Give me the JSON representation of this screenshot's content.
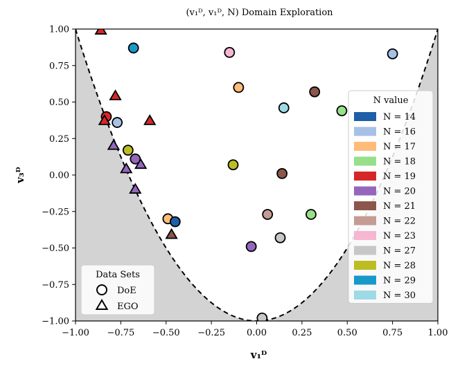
{
  "chart_data": {
    "type": "scatter",
    "title": "(v₁ᴰ, v₁ᴰ, N) Domain Exploration",
    "xlabel": "v₁ᴰ",
    "ylabel": "v₃ᴰ",
    "xlim": [
      -1.0,
      1.0
    ],
    "ylim": [
      -1.0,
      1.0
    ],
    "x_ticks": [
      "−1.00",
      "−0.75",
      "−0.50",
      "−0.25",
      "0.00",
      "0.25",
      "0.50",
      "0.75",
      "1.00"
    ],
    "y_ticks": [
      "−1.00",
      "−0.75",
      "−0.50",
      "−0.25",
      "0.00",
      "0.25",
      "0.50",
      "0.75",
      "1.00"
    ],
    "x_tick_values": [
      -1.0,
      -0.75,
      -0.5,
      -0.25,
      0.0,
      0.25,
      0.5,
      0.75,
      1.0
    ],
    "y_tick_values": [
      -1.0,
      -0.75,
      -0.5,
      -0.25,
      0.0,
      0.25,
      0.5,
      0.75,
      1.0
    ],
    "grid": false,
    "boundary": {
      "curve": "y = 2x^2 - 1",
      "style": "dashed",
      "shaded_region": "outside",
      "shade_color": "#d3d3d3"
    },
    "legend_n": {
      "title": "N value",
      "placement": "right",
      "entries": [
        {
          "label": "N = 14",
          "color": "#1f5fa8"
        },
        {
          "label": "N = 16",
          "color": "#a7c0e6"
        },
        {
          "label": "N = 17",
          "color": "#ffbb78"
        },
        {
          "label": "N = 18",
          "color": "#98df8a"
        },
        {
          "label": "N = 19",
          "color": "#d62728"
        },
        {
          "label": "N = 20",
          "color": "#9467bd"
        },
        {
          "label": "N = 21",
          "color": "#8c564b"
        },
        {
          "label": "N = 22",
          "color": "#c49c94"
        },
        {
          "label": "N = 23",
          "color": "#f7b6d2"
        },
        {
          "label": "N = 27",
          "color": "#c7c7c7"
        },
        {
          "label": "N = 28",
          "color": "#bcbd22"
        },
        {
          "label": "N = 29",
          "color": "#1799c9"
        },
        {
          "label": "N = 30",
          "color": "#9edae5"
        }
      ]
    },
    "legend_sets": {
      "title": "Data Sets",
      "placement": "bottom-left",
      "entries": [
        {
          "label": "DoE",
          "marker": "circle"
        },
        {
          "label": "EGO",
          "marker": "triangle"
        }
      ]
    },
    "points": [
      {
        "x": -0.68,
        "y": 0.87,
        "N": 29,
        "set": "DoE"
      },
      {
        "x": -0.15,
        "y": 0.84,
        "N": 23,
        "set": "DoE"
      },
      {
        "x": -0.1,
        "y": 0.6,
        "N": 17,
        "set": "DoE"
      },
      {
        "x": 0.32,
        "y": 0.57,
        "N": 21,
        "set": "DoE"
      },
      {
        "x": 0.47,
        "y": 0.44,
        "N": 18,
        "set": "DoE"
      },
      {
        "x": 0.75,
        "y": 0.83,
        "N": 16,
        "set": "DoE"
      },
      {
        "x": 0.15,
        "y": 0.46,
        "N": 30,
        "set": "DoE"
      },
      {
        "x": -0.83,
        "y": 0.4,
        "N": 19,
        "set": "DoE"
      },
      {
        "x": -0.77,
        "y": 0.36,
        "N": 16,
        "set": "DoE"
      },
      {
        "x": -0.71,
        "y": 0.17,
        "N": 28,
        "set": "DoE"
      },
      {
        "x": -0.67,
        "y": 0.11,
        "N": 20,
        "set": "DoE"
      },
      {
        "x": -0.13,
        "y": 0.07,
        "N": 28,
        "set": "DoE"
      },
      {
        "x": 0.14,
        "y": 0.01,
        "N": 21,
        "set": "DoE"
      },
      {
        "x": -0.49,
        "y": -0.3,
        "N": 17,
        "set": "DoE"
      },
      {
        "x": -0.45,
        "y": -0.32,
        "N": 14,
        "set": "DoE"
      },
      {
        "x": 0.06,
        "y": -0.27,
        "N": 22,
        "set": "DoE"
      },
      {
        "x": 0.3,
        "y": -0.27,
        "N": 18,
        "set": "DoE"
      },
      {
        "x": 0.13,
        "y": -0.43,
        "N": 27,
        "set": "DoE"
      },
      {
        "x": -0.03,
        "y": -0.49,
        "N": 20,
        "set": "DoE"
      },
      {
        "x": 0.03,
        "y": -0.98,
        "N": 27,
        "set": "DoE"
      },
      {
        "x": -0.86,
        "y": 0.99,
        "N": 19,
        "set": "EGO"
      },
      {
        "x": -0.78,
        "y": 0.54,
        "N": 19,
        "set": "EGO"
      },
      {
        "x": -0.84,
        "y": 0.37,
        "N": 19,
        "set": "EGO"
      },
      {
        "x": -0.59,
        "y": 0.37,
        "N": 19,
        "set": "EGO"
      },
      {
        "x": -0.79,
        "y": 0.2,
        "N": 20,
        "set": "EGO"
      },
      {
        "x": -0.72,
        "y": 0.04,
        "N": 20,
        "set": "EGO"
      },
      {
        "x": -0.64,
        "y": 0.07,
        "N": 20,
        "set": "EGO"
      },
      {
        "x": -0.67,
        "y": -0.1,
        "N": 20,
        "set": "EGO"
      },
      {
        "x": -0.47,
        "y": -0.41,
        "N": 21,
        "set": "EGO"
      }
    ]
  }
}
